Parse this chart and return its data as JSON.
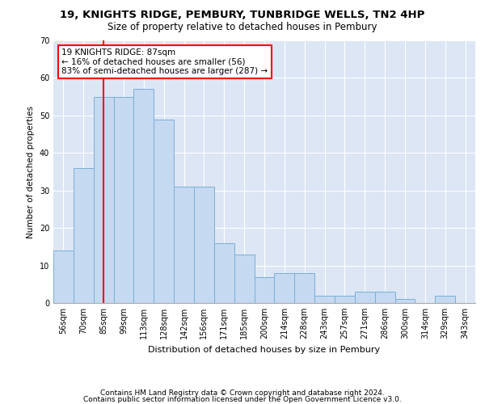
{
  "title1": "19, KNIGHTS RIDGE, PEMBURY, TUNBRIDGE WELLS, TN2 4HP",
  "title2": "Size of property relative to detached houses in Pembury",
  "xlabel": "Distribution of detached houses by size in Pembury",
  "ylabel": "Number of detached properties",
  "categories": [
    "56sqm",
    "70sqm",
    "85sqm",
    "99sqm",
    "113sqm",
    "128sqm",
    "142sqm",
    "156sqm",
    "171sqm",
    "185sqm",
    "200sqm",
    "214sqm",
    "228sqm",
    "243sqm",
    "257sqm",
    "271sqm",
    "286sqm",
    "300sqm",
    "314sqm",
    "329sqm",
    "343sqm"
  ],
  "values": [
    14,
    36,
    55,
    55,
    57,
    49,
    31,
    31,
    16,
    13,
    7,
    8,
    8,
    2,
    2,
    3,
    3,
    1,
    0,
    2,
    0
  ],
  "bar_color": "#c5d9f1",
  "bar_edge_color": "#7bafd4",
  "vline_x": 2.0,
  "annotation_text": "19 KNIGHTS RIDGE: 87sqm\n← 16% of detached houses are smaller (56)\n83% of semi-detached houses are larger (287) →",
  "annotation_box_color": "white",
  "annotation_box_edge_color": "red",
  "vline_color": "red",
  "ylim": [
    0,
    70
  ],
  "yticks": [
    0,
    10,
    20,
    30,
    40,
    50,
    60,
    70
  ],
  "bg_color": "#dce6f5",
  "grid_color": "white",
  "footer1": "Contains HM Land Registry data © Crown copyright and database right 2024.",
  "footer2": "Contains public sector information licensed under the Open Government Licence v3.0.",
  "title1_fontsize": 9.5,
  "title2_fontsize": 8.5,
  "xlabel_fontsize": 8,
  "ylabel_fontsize": 7.5,
  "tick_fontsize": 7,
  "annotation_fontsize": 7.5,
  "footer_fontsize": 6.5
}
